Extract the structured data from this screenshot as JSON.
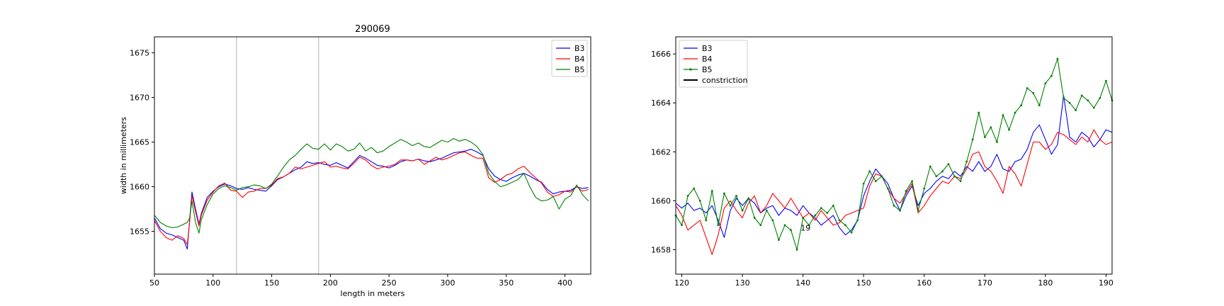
{
  "chart_data": [
    {
      "type": "line",
      "title": "290069",
      "xlabel": "length in meters",
      "ylabel": "width in millimeters",
      "xlim": [
        50,
        422
      ],
      "ylim": [
        1650.2,
        1676.8
      ],
      "xticks": [
        50,
        100,
        150,
        200,
        250,
        300,
        350,
        400
      ],
      "yticks": [
        1655,
        1660,
        1665,
        1670,
        1675
      ],
      "vlines": [
        120,
        190
      ],
      "grid": false,
      "legend": "top-right",
      "series": [
        {
          "name": "B3",
          "color": "#0000ff",
          "x": [
            50,
            55,
            60,
            65,
            70,
            75,
            78,
            80,
            82,
            85,
            88,
            90,
            95,
            100,
            105,
            110,
            115,
            120,
            125,
            130,
            135,
            140,
            145,
            150,
            155,
            160,
            165,
            170,
            175,
            180,
            185,
            190,
            195,
            200,
            205,
            210,
            215,
            220,
            225,
            230,
            235,
            240,
            245,
            250,
            255,
            260,
            265,
            270,
            275,
            280,
            285,
            290,
            295,
            300,
            305,
            310,
            315,
            320,
            325,
            330,
            335,
            340,
            345,
            350,
            355,
            360,
            365,
            370,
            375,
            380,
            385,
            390,
            395,
            400,
            405,
            410,
            415,
            420
          ],
          "y": [
            1656.5,
            1655.3,
            1654.8,
            1654.6,
            1654.3,
            1654.0,
            1653.0,
            1656.2,
            1659.4,
            1657.5,
            1655.8,
            1657.0,
            1658.8,
            1659.5,
            1660.0,
            1660.3,
            1660.1,
            1659.8,
            1659.7,
            1659.9,
            1659.7,
            1659.6,
            1659.5,
            1660.1,
            1660.8,
            1661.1,
            1661.5,
            1661.9,
            1662.2,
            1662.8,
            1662.6,
            1662.7,
            1662.5,
            1662.4,
            1662.7,
            1662.4,
            1662.1,
            1662.8,
            1663.5,
            1663.2,
            1662.8,
            1662.4,
            1662.3,
            1662.1,
            1662.4,
            1662.8,
            1663.0,
            1662.9,
            1663.1,
            1662.9,
            1662.8,
            1663.0,
            1663.2,
            1663.5,
            1663.8,
            1663.9,
            1664.0,
            1664.2,
            1663.9,
            1663.5,
            1662.0,
            1661.2,
            1660.8,
            1660.6,
            1661.0,
            1661.3,
            1661.5,
            1661.2,
            1660.8,
            1660.5,
            1659.7,
            1659.2,
            1659.4,
            1659.5,
            1659.6,
            1660.0,
            1659.8,
            1659.9
          ]
        },
        {
          "name": "B4",
          "color": "#ff0000",
          "x": [
            50,
            55,
            60,
            65,
            70,
            75,
            78,
            80,
            82,
            85,
            88,
            90,
            95,
            100,
            105,
            110,
            115,
            120,
            125,
            130,
            135,
            140,
            145,
            150,
            155,
            160,
            165,
            170,
            175,
            180,
            185,
            190,
            195,
            200,
            205,
            210,
            215,
            220,
            225,
            230,
            235,
            240,
            245,
            250,
            255,
            260,
            265,
            270,
            275,
            280,
            285,
            290,
            295,
            300,
            305,
            310,
            315,
            320,
            325,
            330,
            335,
            340,
            345,
            350,
            355,
            360,
            365,
            370,
            375,
            380,
            385,
            390,
            395,
            400,
            405,
            410,
            415,
            420
          ],
          "y": [
            1656.2,
            1655.0,
            1654.3,
            1654.0,
            1654.5,
            1654.2,
            1653.5,
            1656.0,
            1659.0,
            1657.2,
            1655.6,
            1656.8,
            1658.5,
            1659.4,
            1660.1,
            1660.4,
            1659.6,
            1659.5,
            1658.8,
            1659.4,
            1659.5,
            1659.8,
            1659.8,
            1660.2,
            1660.9,
            1661.1,
            1661.5,
            1662.2,
            1662.0,
            1662.2,
            1662.4,
            1662.6,
            1662.8,
            1662.2,
            1662.3,
            1662.1,
            1662.0,
            1662.6,
            1663.3,
            1663.0,
            1662.4,
            1662.0,
            1662.2,
            1662.3,
            1662.5,
            1663.0,
            1663.0,
            1662.9,
            1663.1,
            1662.5,
            1662.9,
            1663.3,
            1663.0,
            1663.2,
            1663.5,
            1663.8,
            1663.9,
            1663.5,
            1663.2,
            1663.2,
            1661.0,
            1660.5,
            1660.8,
            1661.3,
            1661.5,
            1662.0,
            1662.3,
            1661.6,
            1661.0,
            1660.4,
            1659.4,
            1658.9,
            1659.1,
            1659.5,
            1659.4,
            1660.0,
            1659.5,
            1659.7
          ]
        },
        {
          "name": "B5",
          "color": "#008000",
          "x": [
            50,
            55,
            60,
            65,
            70,
            75,
            78,
            80,
            82,
            85,
            88,
            90,
            95,
            100,
            105,
            110,
            115,
            120,
            125,
            130,
            135,
            140,
            145,
            150,
            155,
            160,
            165,
            170,
            175,
            180,
            185,
            190,
            195,
            200,
            205,
            210,
            215,
            220,
            225,
            230,
            235,
            240,
            245,
            250,
            255,
            260,
            265,
            270,
            275,
            280,
            285,
            290,
            295,
            300,
            305,
            310,
            315,
            320,
            325,
            330,
            335,
            340,
            345,
            350,
            355,
            360,
            365,
            370,
            375,
            380,
            385,
            390,
            395,
            400,
            405,
            410,
            415,
            420
          ],
          "y": [
            1656.8,
            1656.0,
            1655.6,
            1655.4,
            1655.5,
            1655.8,
            1656.0,
            1656.5,
            1658.4,
            1656.0,
            1654.8,
            1656.3,
            1658.0,
            1659.2,
            1659.8,
            1660.1,
            1659.9,
            1659.6,
            1659.9,
            1660.0,
            1660.2,
            1660.1,
            1659.8,
            1660.3,
            1661.2,
            1662.2,
            1663.0,
            1663.5,
            1664.2,
            1664.8,
            1664.3,
            1664.2,
            1664.8,
            1664.1,
            1664.8,
            1664.5,
            1664.0,
            1664.2,
            1664.9,
            1664.0,
            1664.4,
            1663.8,
            1664.0,
            1664.5,
            1664.9,
            1665.3,
            1665.0,
            1664.6,
            1664.9,
            1664.5,
            1664.4,
            1664.8,
            1665.2,
            1665.0,
            1665.4,
            1665.1,
            1665.3,
            1665.0,
            1664.5,
            1663.6,
            1661.5,
            1660.6,
            1660.0,
            1660.2,
            1660.5,
            1660.8,
            1661.5,
            1660.0,
            1658.8,
            1658.4,
            1658.5,
            1658.9,
            1657.5,
            1658.6,
            1659.0,
            1660.2,
            1659.1,
            1658.4
          ]
        }
      ]
    },
    {
      "type": "line",
      "title": "",
      "xlabel": "",
      "ylabel": "",
      "xlim": [
        119,
        191
      ],
      "ylim": [
        1657.0,
        1666.7
      ],
      "xticks": [
        120,
        130,
        140,
        150,
        160,
        170,
        180,
        190
      ],
      "yticks": [
        1658,
        1660,
        1662,
        1664,
        1666
      ],
      "grid": false,
      "legend": "top-left",
      "annotation": {
        "text": "19",
        "x": 139.6,
        "y": 1658.9
      },
      "legend_entries": [
        "B3",
        "B4",
        "B5",
        "constriction"
      ],
      "series": [
        {
          "name": "B3",
          "color": "#0000ff",
          "marker": false,
          "x": [
            119,
            120,
            121,
            122,
            123,
            124,
            125,
            126,
            127,
            128,
            129,
            130,
            131,
            132,
            133,
            134,
            135,
            136,
            137,
            138,
            139,
            140,
            141,
            142,
            143,
            144,
            145,
            146,
            147,
            148,
            149,
            150,
            151,
            152,
            153,
            154,
            155,
            156,
            157,
            158,
            159,
            160,
            161,
            162,
            163,
            164,
            165,
            166,
            167,
            168,
            169,
            170,
            171,
            172,
            173,
            174,
            175,
            176,
            177,
            178,
            179,
            180,
            181,
            182,
            183,
            184,
            185,
            186,
            187,
            188,
            189,
            190,
            191
          ],
          "y": [
            1659.9,
            1659.7,
            1659.9,
            1659.6,
            1659.7,
            1659.5,
            1659.8,
            1659.2,
            1658.5,
            1659.6,
            1660.1,
            1659.8,
            1660.1,
            1659.9,
            1659.5,
            1659.7,
            1659.8,
            1659.4,
            1659.7,
            1659.6,
            1659.4,
            1659.8,
            1659.5,
            1659.3,
            1659.0,
            1659.2,
            1659.4,
            1658.9,
            1658.6,
            1658.8,
            1659.2,
            1660.2,
            1660.8,
            1661.3,
            1661.0,
            1660.7,
            1660.1,
            1659.6,
            1660.2,
            1660.6,
            1659.8,
            1660.3,
            1660.5,
            1660.8,
            1661.0,
            1660.9,
            1661.2,
            1661.0,
            1661.4,
            1661.2,
            1661.6,
            1661.2,
            1661.4,
            1661.9,
            1661.3,
            1661.2,
            1661.6,
            1661.7,
            1662.1,
            1662.8,
            1663.1,
            1662.5,
            1661.9,
            1662.3,
            1664.3,
            1662.6,
            1662.4,
            1662.8,
            1662.6,
            1662.2,
            1662.5,
            1662.9,
            1662.8
          ]
        },
        {
          "name": "B4",
          "color": "#ff0000",
          "marker": false,
          "x": [
            119,
            120,
            121,
            122,
            123,
            124,
            125,
            126,
            127,
            128,
            129,
            130,
            131,
            132,
            133,
            134,
            135,
            136,
            137,
            138,
            139,
            140,
            141,
            142,
            143,
            144,
            145,
            146,
            147,
            148,
            149,
            150,
            151,
            152,
            153,
            154,
            155,
            156,
            157,
            158,
            159,
            160,
            161,
            162,
            163,
            164,
            165,
            166,
            167,
            168,
            169,
            170,
            171,
            172,
            173,
            174,
            175,
            176,
            177,
            178,
            179,
            180,
            181,
            182,
            183,
            184,
            185,
            186,
            187,
            188,
            189,
            190,
            191
          ],
          "y": [
            1659.8,
            1659.4,
            1658.8,
            1659.0,
            1659.2,
            1658.5,
            1657.8,
            1658.6,
            1659.7,
            1660.0,
            1659.6,
            1659.3,
            1659.9,
            1660.2,
            1659.5,
            1659.8,
            1660.3,
            1660.0,
            1659.7,
            1660.1,
            1659.7,
            1659.3,
            1659.5,
            1659.2,
            1659.6,
            1659.3,
            1659.0,
            1659.1,
            1659.4,
            1659.5,
            1659.6,
            1659.7,
            1660.6,
            1661.1,
            1661.0,
            1660.5,
            1660.1,
            1659.9,
            1660.3,
            1660.7,
            1659.5,
            1659.8,
            1660.2,
            1660.5,
            1660.8,
            1660.7,
            1661.0,
            1660.9,
            1661.3,
            1661.9,
            1662.0,
            1661.4,
            1661.2,
            1660.8,
            1660.3,
            1661.4,
            1661.1,
            1660.6,
            1661.5,
            1662.4,
            1662.4,
            1662.1,
            1662.3,
            1662.8,
            1662.7,
            1662.5,
            1662.3,
            1662.6,
            1662.4,
            1662.9,
            1662.5,
            1662.3,
            1662.4
          ]
        },
        {
          "name": "B5",
          "color": "#008000",
          "marker": true,
          "x": [
            119,
            120,
            121,
            122,
            123,
            124,
            125,
            126,
            127,
            128,
            129,
            130,
            131,
            132,
            133,
            134,
            135,
            136,
            137,
            138,
            139,
            140,
            141,
            142,
            143,
            144,
            145,
            146,
            147,
            148,
            149,
            150,
            151,
            152,
            153,
            154,
            155,
            156,
            157,
            158,
            159,
            160,
            161,
            162,
            163,
            164,
            165,
            166,
            167,
            168,
            169,
            170,
            171,
            172,
            173,
            174,
            175,
            176,
            177,
            178,
            179,
            180,
            181,
            182,
            183,
            184,
            185,
            186,
            187,
            188,
            189,
            190,
            191
          ],
          "y": [
            1659.4,
            1659.0,
            1660.2,
            1660.5,
            1660.0,
            1659.2,
            1660.4,
            1659.0,
            1660.3,
            1659.8,
            1660.2,
            1659.6,
            1660.1,
            1659.3,
            1659.0,
            1659.6,
            1659.2,
            1658.4,
            1659.0,
            1658.8,
            1658.0,
            1659.3,
            1659.0,
            1659.4,
            1659.7,
            1659.5,
            1659.8,
            1659.2,
            1659.0,
            1658.7,
            1659.2,
            1660.7,
            1661.2,
            1660.8,
            1661.0,
            1660.5,
            1659.8,
            1659.6,
            1660.4,
            1660.8,
            1659.6,
            1660.5,
            1661.4,
            1661.0,
            1661.2,
            1661.5,
            1661.0,
            1660.8,
            1661.6,
            1662.5,
            1663.6,
            1662.6,
            1663.0,
            1662.4,
            1663.5,
            1662.9,
            1663.6,
            1663.9,
            1664.6,
            1664.4,
            1663.9,
            1664.8,
            1665.1,
            1665.8,
            1664.2,
            1664.0,
            1663.7,
            1664.3,
            1664.1,
            1663.8,
            1664.2,
            1664.9,
            1664.1
          ]
        }
      ]
    }
  ]
}
